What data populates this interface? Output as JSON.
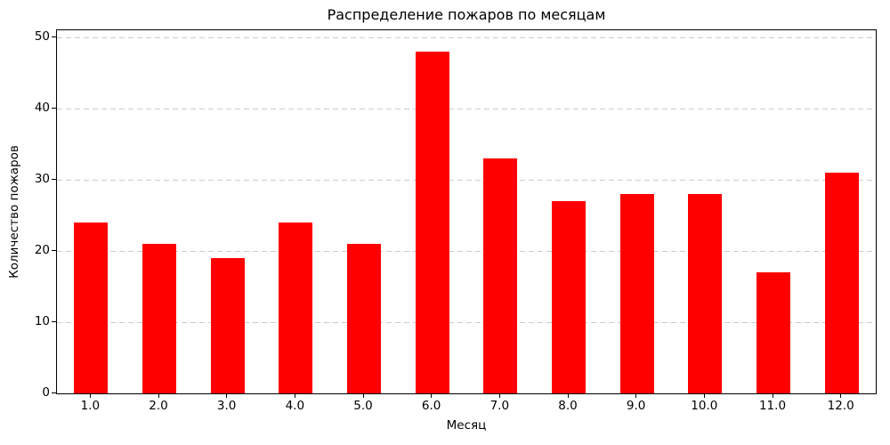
{
  "chart_data": {
    "type": "bar",
    "title": "Распределение пожаров по месяцам",
    "xlabel": "Месяц",
    "ylabel": "Количество пожаров",
    "categories": [
      "1.0",
      "2.0",
      "3.0",
      "4.0",
      "5.0",
      "6.0",
      "7.0",
      "8.0",
      "9.0",
      "10.0",
      "11.0",
      "12.0"
    ],
    "values": [
      24,
      21,
      19,
      24,
      21,
      48,
      33,
      27,
      28,
      28,
      17,
      31
    ],
    "yticks": [
      0,
      10,
      20,
      30,
      40,
      50
    ],
    "ylim": [
      0,
      51
    ],
    "bar_color": "#ff0000",
    "grid_color": "#cccccc",
    "grid_style": "dashed",
    "grid_axis": "y",
    "legend": "none",
    "background_color": "#ffffff",
    "text_color": "#000000"
  }
}
